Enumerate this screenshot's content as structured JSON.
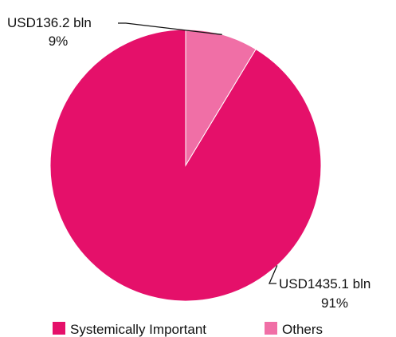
{
  "chart_data": {
    "type": "pie",
    "series": [
      {
        "name": "Systemically Important",
        "value": 1435.1,
        "value_label": "USD1435.1 bln",
        "percent_label": "91%",
        "color": "#e5106a"
      },
      {
        "name": "Others",
        "value": 136.2,
        "value_label": "USD136.2 bln",
        "percent_label": "9%",
        "color": "#f06fa6"
      }
    ],
    "start_angle_deg": 0,
    "direction": "counterclockwise",
    "legend_position": "bottom"
  }
}
